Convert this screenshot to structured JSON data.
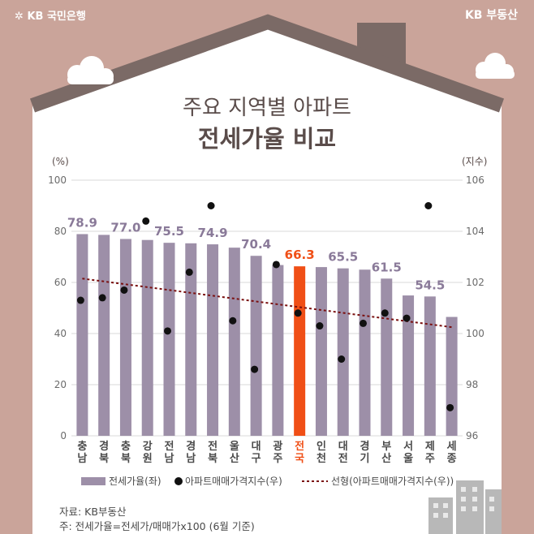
{
  "brand": {
    "left": "KB 국민은행",
    "right": "KB 부동산"
  },
  "title": {
    "line1": "주요 지역별 아파트",
    "line2": "전세가율 비교"
  },
  "chart_data": {
    "type": "bar",
    "left_axis_label": "(%)",
    "right_axis_label": "(지수)",
    "ylim_left": [
      0,
      100
    ],
    "yticks_left": [
      "0",
      "20",
      "40",
      "60",
      "80",
      "100"
    ],
    "ylim_right": [
      96,
      106
    ],
    "yticks_right": [
      "96",
      "98",
      "100",
      "102",
      "104",
      "106"
    ],
    "categories": [
      "충남",
      "경북",
      "충북",
      "강원",
      "전남",
      "경남",
      "전북",
      "울산",
      "대구",
      "광주",
      "전국",
      "인천",
      "대전",
      "경기",
      "부산",
      "서울",
      "제주",
      "세종"
    ],
    "series": [
      {
        "name": "전세가율(좌)",
        "axis": "left",
        "type": "bar",
        "values": [
          78.9,
          78.6,
          77.0,
          76.6,
          75.5,
          75.3,
          74.9,
          73.6,
          70.4,
          66.8,
          66.3,
          66.0,
          65.5,
          65.0,
          61.5,
          54.9,
          54.5,
          46.5
        ],
        "color": "#9d8fa8",
        "highlight_index": 10,
        "highlight_color": "#f04f16"
      },
      {
        "name": "아파트매매가격지수(우)",
        "axis": "right",
        "type": "scatter",
        "values": [
          101.3,
          101.4,
          101.7,
          104.4,
          100.1,
          102.4,
          105.0,
          100.5,
          98.6,
          102.7,
          100.8,
          100.3,
          99.0,
          100.4,
          100.8,
          100.6,
          105.0,
          97.1
        ],
        "color": "#111111"
      },
      {
        "name": "선형(아파트매매가격지수(우))",
        "axis": "right",
        "type": "trendline",
        "start": 102.15,
        "end": 100.25,
        "color": "#7a1010"
      }
    ],
    "data_labels": [
      {
        "index": 0,
        "text": "78.9"
      },
      {
        "index": 2,
        "text": "77.0"
      },
      {
        "index": 4,
        "text": "75.5"
      },
      {
        "index": 6,
        "text": "74.9"
      },
      {
        "index": 8,
        "text": "70.4"
      },
      {
        "index": 10,
        "text": "66.3"
      },
      {
        "index": 12,
        "text": "65.5"
      },
      {
        "index": 14,
        "text": "61.5"
      },
      {
        "index": 16,
        "text": "54.5"
      }
    ],
    "legend": [
      "전세가율(좌)",
      "아파트매매가격지수(우)",
      "선형(아파트매매가격지수(우))"
    ]
  },
  "footer": {
    "source": "자료: KB부동산",
    "note": "주: 전세가율=전세가/매매가x100 (6월 기준)"
  },
  "colors": {
    "background": "#caa49a",
    "house": "#ffffff",
    "chimney": "#7b6a66",
    "label": "#8a7a99",
    "highlight": "#f04f16",
    "text": "#5a4c4a"
  }
}
